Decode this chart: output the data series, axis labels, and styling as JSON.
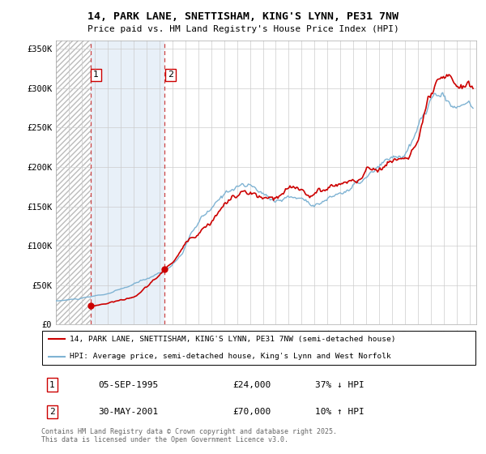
{
  "title1": "14, PARK LANE, SNETTISHAM, KING'S LYNN, PE31 7NW",
  "title2": "Price paid vs. HM Land Registry's House Price Index (HPI)",
  "legend_line1": "14, PARK LANE, SNETTISHAM, KING'S LYNN, PE31 7NW (semi-detached house)",
  "legend_line2": "HPI: Average price, semi-detached house, King's Lynn and West Norfolk",
  "footer": "Contains HM Land Registry data © Crown copyright and database right 2025.\nThis data is licensed under the Open Government Licence v3.0.",
  "transaction1_label": "1",
  "transaction1_date": "05-SEP-1995",
  "transaction1_price": "£24,000",
  "transaction1_hpi": "37% ↓ HPI",
  "transaction1_year": 1995.67,
  "transaction1_value": 24000,
  "transaction2_label": "2",
  "transaction2_date": "30-MAY-2001",
  "transaction2_price": "£70,000",
  "transaction2_hpi": "10% ↑ HPI",
  "transaction2_year": 2001.42,
  "transaction2_value": 70000,
  "price_color": "#cc0000",
  "hpi_color": "#7fb3d3",
  "hatch_bg_color": "#f0f0f0",
  "light_blue_bg": "#e8f0f8",
  "ylim_min": 0,
  "ylim_max": 360000,
  "yticks": [
    0,
    50000,
    100000,
    150000,
    200000,
    250000,
    300000,
    350000
  ],
  "ytick_labels": [
    "£0",
    "£50K",
    "£100K",
    "£150K",
    "£200K",
    "£250K",
    "£300K",
    "£350K"
  ],
  "xlim_min": 1993.0,
  "xlim_max": 2025.5,
  "xticks": [
    1993,
    1994,
    1995,
    1996,
    1997,
    1998,
    1999,
    2000,
    2001,
    2002,
    2003,
    2004,
    2005,
    2006,
    2007,
    2008,
    2009,
    2010,
    2011,
    2012,
    2013,
    2014,
    2015,
    2016,
    2017,
    2018,
    2019,
    2020,
    2021,
    2022,
    2023,
    2024,
    2025
  ]
}
